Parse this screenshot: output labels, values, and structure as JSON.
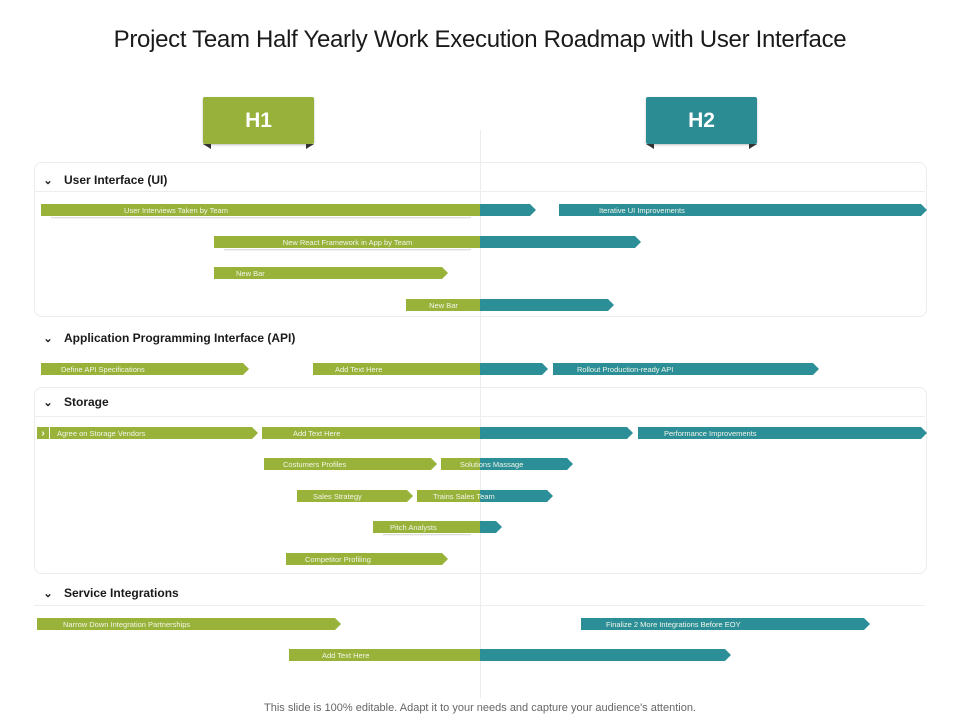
{
  "title": "Project Team Half Yearly Work Execution Roadmap with User Interface",
  "halves": {
    "h1": "H1",
    "h2": "H2"
  },
  "colors": {
    "h1_green": "#97b13a",
    "h2_teal": "#2b8c93"
  },
  "sections": {
    "ui": {
      "label": "User Interface (UI)",
      "icon": "chevron-down-icon"
    },
    "api": {
      "label": "Application Programming Interface (API)",
      "icon": "chevron-down-icon"
    },
    "storage": {
      "label": "Storage",
      "icon": "chevron-down-icon"
    },
    "service": {
      "label": "Service Integrations",
      "icon": "chevron-down-icon"
    }
  },
  "bars": {
    "ui_1": "User Interviews Taken by Team",
    "ui_2": "Iterative  UI Improvements",
    "ui_3": "New React Framework in App by Team",
    "ui_4": "New Bar",
    "ui_5": "New Bar",
    "api_1": "Define API Specifications",
    "api_2": "Add Text Here",
    "api_3": "Rollout Production-ready API",
    "st_1": "Agree on Storage Vendors",
    "st_2": "Add Text Here",
    "st_3": "Performance Improvements",
    "st_4": "Costumers Profiles",
    "st_5": "Solutions Massage",
    "st_6": "Sales Strategy",
    "st_7": "Trains Sales Team",
    "st_8": "Pitch Analysts",
    "st_9": "Competitor Profiling",
    "si_1": "Narrow Down Integration Partnerships",
    "si_2": "Finalize 2 More Integrations Before EOY",
    "si_3": "Add Text Here"
  },
  "footer": "This slide is 100% editable. Adapt it to your needs and capture your audience's attention."
}
